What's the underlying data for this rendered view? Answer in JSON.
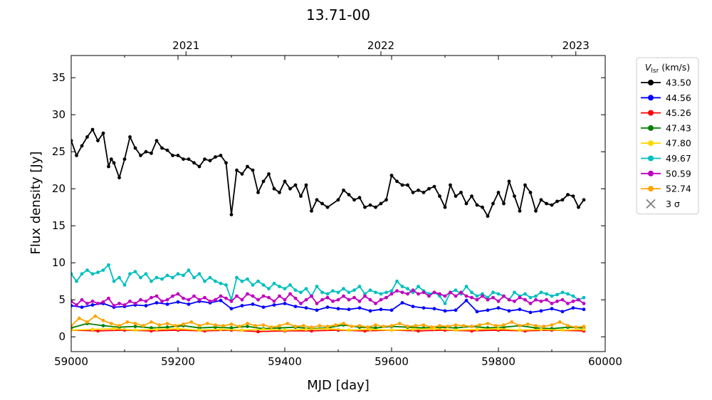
{
  "chart_data": {
    "type": "line",
    "title": "13.71-00",
    "xlabel": "MJD [day]",
    "ylabel": "Flux density [Jy]",
    "xlim": [
      59000,
      60000
    ],
    "ylim": [
      -2,
      38
    ],
    "xticks": [
      59000,
      59200,
      59400,
      59600,
      59800,
      60000
    ],
    "yticks": [
      0,
      5,
      10,
      15,
      20,
      25,
      30,
      35
    ],
    "top_axis": {
      "ticks": [
        {
          "label": "2021",
          "mjd": 59215
        },
        {
          "label": "2022",
          "mjd": 59580
        },
        {
          "label": "2023",
          "mjd": 59945
        }
      ]
    },
    "grid": false,
    "legend": {
      "title_main": "V",
      "title_sub": "lsr",
      "title_unit": " (km/s)",
      "placement": "outside-right-top",
      "sigma_label": "3 σ",
      "sigma_color": "#808080"
    },
    "series": [
      {
        "name": "43.50",
        "color": "#000000",
        "x": [
          59000,
          59010,
          59020,
          59030,
          59040,
          59050,
          59060,
          59070,
          59075,
          59080,
          59090,
          59100,
          59110,
          59120,
          59130,
          59140,
          59150,
          59160,
          59170,
          59180,
          59190,
          59200,
          59210,
          59220,
          59230,
          59240,
          59250,
          59260,
          59270,
          59280,
          59290,
          59300,
          59310,
          59320,
          59330,
          59340,
          59350,
          59360,
          59370,
          59380,
          59390,
          59400,
          59410,
          59420,
          59430,
          59440,
          59450,
          59460,
          59470,
          59480,
          59500,
          59510,
          59520,
          59530,
          59540,
          59550,
          59560,
          59570,
          59580,
          59590,
          59600,
          59610,
          59620,
          59630,
          59640,
          59650,
          59660,
          59670,
          59680,
          59690,
          59700,
          59710,
          59720,
          59730,
          59740,
          59750,
          59760,
          59770,
          59780,
          59790,
          59800,
          59810,
          59820,
          59830,
          59840,
          59850,
          59860,
          59870,
          59880,
          59890,
          59900,
          59910,
          59920,
          59930,
          59940,
          59950,
          59960
        ],
        "y": [
          26.5,
          24.5,
          25.8,
          27,
          28,
          26.5,
          27.5,
          23,
          24,
          23.5,
          21.5,
          24,
          27,
          25.5,
          24.5,
          25,
          24.8,
          26.5,
          25.5,
          25.2,
          24.5,
          24.5,
          24,
          24,
          23.5,
          23,
          24,
          23.8,
          24.3,
          24.5,
          23.5,
          16.5,
          22.5,
          22,
          23,
          22.5,
          19.5,
          21,
          22,
          20,
          19.5,
          21,
          20,
          20.5,
          19,
          20.5,
          17,
          18.5,
          18,
          17.5,
          18.5,
          19.8,
          19.2,
          18.5,
          18.8,
          17.5,
          17.8,
          17.5,
          18,
          18.5,
          21.8,
          21,
          20.5,
          20.5,
          19.5,
          19.8,
          19.5,
          20,
          20.3,
          19,
          17.5,
          20.5,
          19,
          19.5,
          18,
          19,
          17.8,
          17.5,
          16.3,
          18,
          19.5,
          18,
          21,
          19,
          17,
          20.5,
          19.5,
          17,
          18.5,
          18,
          17.8,
          18.3,
          18.5,
          19.2,
          19,
          17.5,
          18.5
        ]
      },
      {
        "name": "44.56",
        "color": "#0000ff",
        "x": [
          59000,
          59020,
          59040,
          59060,
          59080,
          59100,
          59120,
          59140,
          59160,
          59180,
          59200,
          59220,
          59240,
          59260,
          59280,
          59300,
          59320,
          59340,
          59360,
          59380,
          59400,
          59420,
          59440,
          59460,
          59480,
          59500,
          59520,
          59540,
          59560,
          59580,
          59600,
          59620,
          59640,
          59660,
          59680,
          59700,
          59720,
          59740,
          59760,
          59780,
          59800,
          59820,
          59840,
          59860,
          59880,
          59900,
          59920,
          59940,
          59960
        ],
        "y": [
          4.2,
          4.0,
          4.3,
          4.5,
          4.0,
          4.1,
          4.3,
          4.2,
          4.6,
          4.4,
          4.7,
          4.4,
          4.8,
          4.6,
          4.9,
          3.8,
          4.2,
          4.4,
          4.0,
          4.3,
          4.5,
          4.1,
          3.9,
          3.6,
          4.0,
          3.8,
          3.7,
          3.9,
          3.5,
          3.7,
          3.6,
          4.6,
          4.1,
          3.9,
          3.8,
          3.5,
          3.6,
          4.9,
          3.4,
          3.6,
          3.9,
          3.5,
          3.7,
          3.3,
          3.5,
          3.8,
          3.4,
          3.9,
          3.7
        ]
      },
      {
        "name": "45.26",
        "color": "#ff0000",
        "x": [
          59000,
          59050,
          59100,
          59150,
          59200,
          59250,
          59300,
          59350,
          59400,
          59450,
          59500,
          59550,
          59600,
          59650,
          59700,
          59750,
          59800,
          59850,
          59900,
          59960
        ],
        "y": [
          0.9,
          0.8,
          0.9,
          0.8,
          0.9,
          0.8,
          0.9,
          0.7,
          0.8,
          0.8,
          0.9,
          0.8,
          0.9,
          0.8,
          0.9,
          0.8,
          0.9,
          0.8,
          0.9,
          0.8
        ]
      },
      {
        "name": "47.43",
        "color": "#008000",
        "x": [
          59000,
          59030,
          59060,
          59090,
          59120,
          59150,
          59180,
          59210,
          59240,
          59270,
          59300,
          59330,
          59360,
          59390,
          59420,
          59450,
          59480,
          59510,
          59540,
          59570,
          59600,
          59630,
          59660,
          59690,
          59720,
          59750,
          59780,
          59810,
          59840,
          59870,
          59900,
          59930,
          59960
        ],
        "y": [
          1.2,
          1.8,
          1.5,
          1.3,
          1.4,
          1.2,
          1.3,
          1.5,
          1.2,
          1.3,
          1.2,
          1.4,
          1.1,
          1.2,
          1.3,
          1.1,
          1.2,
          1.6,
          1.3,
          1.2,
          1.4,
          1.3,
          1.2,
          1.3,
          1.2,
          1.4,
          1.2,
          1.3,
          1.5,
          1.2,
          1.1,
          1.3,
          1.2
        ]
      },
      {
        "name": "47.80",
        "color": "#ffd700",
        "x": [
          59000,
          59040,
          59080,
          59120,
          59160,
          59200,
          59240,
          59280,
          59320,
          59360,
          59400,
          59440,
          59480,
          59520,
          59560,
          59600,
          59640,
          59680,
          59720,
          59760,
          59800,
          59840,
          59880,
          59920,
          59960
        ],
        "y": [
          0.9,
          1.0,
          1.1,
          0.9,
          1.0,
          1.1,
          0.9,
          1.0,
          0.9,
          1.0,
          0.9,
          1.0,
          1.1,
          0.9,
          1.0,
          0.9,
          1.0,
          1.1,
          0.9,
          1.0,
          1.1,
          0.9,
          1.0,
          0.9,
          1.0
        ]
      },
      {
        "name": "49.67",
        "color": "#00bfbf",
        "x": [
          59000,
          59010,
          59020,
          59030,
          59040,
          59050,
          59060,
          59070,
          59080,
          59090,
          59100,
          59110,
          59120,
          59130,
          59140,
          59150,
          59160,
          59170,
          59180,
          59190,
          59200,
          59210,
          59220,
          59230,
          59240,
          59250,
          59260,
          59270,
          59280,
          59290,
          59300,
          59310,
          59320,
          59330,
          59340,
          59350,
          59360,
          59370,
          59380,
          59390,
          59400,
          59410,
          59420,
          59430,
          59440,
          59450,
          59460,
          59470,
          59480,
          59490,
          59500,
          59510,
          59520,
          59530,
          59540,
          59550,
          59560,
          59570,
          59580,
          59590,
          59600,
          59610,
          59620,
          59630,
          59640,
          59650,
          59660,
          59670,
          59680,
          59690,
          59700,
          59710,
          59720,
          59730,
          59740,
          59750,
          59760,
          59770,
          59780,
          59790,
          59800,
          59810,
          59820,
          59830,
          59840,
          59850,
          59860,
          59870,
          59880,
          59890,
          59900,
          59910,
          59920,
          59930,
          59940,
          59950,
          59960
        ],
        "y": [
          8.5,
          7.5,
          8.5,
          9.0,
          8.5,
          8.7,
          9.0,
          9.7,
          7.5,
          8.0,
          7.0,
          8.5,
          8.8,
          8.0,
          8.5,
          7.5,
          8.0,
          7.8,
          8.3,
          8.0,
          8.5,
          8.3,
          9.0,
          8.0,
          8.5,
          7.5,
          8.0,
          7.5,
          7.2,
          7.0,
          5.0,
          8.0,
          7.5,
          7.8,
          7.0,
          7.5,
          7.0,
          6.5,
          7.2,
          6.8,
          6.5,
          7.0,
          6.3,
          6.0,
          6.5,
          5.5,
          6.8,
          6.0,
          5.8,
          6.2,
          6.0,
          6.5,
          6.0,
          6.3,
          6.8,
          5.8,
          6.3,
          6.0,
          5.8,
          6.0,
          6.2,
          7.5,
          6.8,
          6.5,
          6.0,
          6.8,
          6.2,
          5.8,
          6.0,
          5.5,
          4.5,
          6.0,
          6.3,
          5.8,
          6.8,
          6.0,
          5.5,
          5.8,
          5.3,
          6.0,
          5.8,
          5.5,
          5.0,
          6.0,
          5.5,
          5.8,
          5.3,
          5.5,
          6.0,
          5.8,
          5.5,
          5.7,
          6.0,
          5.8,
          5.5,
          5.0,
          5.3
        ]
      },
      {
        "name": "50.59",
        "color": "#bf00bf",
        "x": [
          59000,
          59010,
          59020,
          59030,
          59040,
          59050,
          59060,
          59070,
          59080,
          59090,
          59100,
          59110,
          59120,
          59130,
          59140,
          59150,
          59160,
          59170,
          59180,
          59190,
          59200,
          59210,
          59220,
          59230,
          59240,
          59250,
          59260,
          59270,
          59280,
          59290,
          59300,
          59310,
          59320,
          59330,
          59340,
          59350,
          59360,
          59370,
          59380,
          59390,
          59400,
          59410,
          59420,
          59430,
          59440,
          59450,
          59460,
          59470,
          59480,
          59490,
          59500,
          59510,
          59520,
          59530,
          59540,
          59550,
          59560,
          59570,
          59580,
          59590,
          59600,
          59610,
          59620,
          59630,
          59640,
          59650,
          59660,
          59670,
          59680,
          59690,
          59700,
          59710,
          59720,
          59730,
          59740,
          59750,
          59760,
          59770,
          59780,
          59790,
          59800,
          59810,
          59820,
          59830,
          59840,
          59850,
          59860,
          59870,
          59880,
          59890,
          59900,
          59910,
          59920,
          59930,
          59940,
          59950,
          59960
        ],
        "y": [
          4.8,
          4.3,
          5.0,
          4.5,
          4.8,
          4.5,
          4.7,
          5.2,
          4.2,
          4.5,
          4.3,
          4.8,
          4.5,
          5.0,
          4.8,
          5.3,
          5.5,
          4.8,
          5.0,
          5.5,
          5.8,
          5.2,
          5.0,
          5.5,
          5.0,
          5.3,
          4.8,
          5.0,
          5.5,
          5.2,
          4.8,
          5.5,
          5.0,
          5.8,
          5.5,
          5.0,
          5.5,
          5.3,
          4.8,
          5.5,
          5.0,
          5.8,
          5.2,
          4.5,
          5.0,
          5.5,
          4.5,
          5.0,
          5.3,
          4.8,
          5.0,
          5.5,
          5.0,
          5.3,
          4.8,
          5.5,
          5.0,
          4.5,
          5.0,
          5.3,
          5.8,
          6.2,
          6.0,
          5.8,
          6.3,
          5.8,
          6.0,
          5.5,
          6.0,
          5.8,
          5.5,
          6.0,
          5.5,
          6.0,
          5.5,
          5.3,
          5.0,
          5.5,
          5.0,
          5.3,
          4.8,
          5.5,
          5.0,
          4.8,
          5.3,
          5.0,
          4.5,
          5.0,
          4.8,
          5.0,
          4.5,
          4.8,
          5.0,
          4.5,
          4.8,
          5.0,
          4.5
        ]
      },
      {
        "name": "52.74",
        "color": "#ffa500",
        "x": [
          59000,
          59015,
          59030,
          59045,
          59060,
          59075,
          59090,
          59105,
          59120,
          59135,
          59150,
          59165,
          59180,
          59195,
          59210,
          59225,
          59240,
          59255,
          59270,
          59285,
          59300,
          59315,
          59330,
          59345,
          59360,
          59375,
          59390,
          59405,
          59420,
          59435,
          59450,
          59465,
          59480,
          59495,
          59510,
          59525,
          59540,
          59555,
          59570,
          59585,
          59600,
          59615,
          59630,
          59645,
          59660,
          59675,
          59690,
          59705,
          59720,
          59735,
          59750,
          59765,
          59780,
          59795,
          59810,
          59825,
          59840,
          59855,
          59870,
          59885,
          59900,
          59915,
          59930,
          59945,
          59960
        ],
        "y": [
          1.5,
          2.5,
          2.0,
          2.8,
          2.2,
          1.8,
          1.5,
          2.0,
          1.8,
          1.5,
          2.0,
          1.6,
          1.8,
          1.5,
          1.7,
          2.0,
          1.5,
          1.8,
          1.6,
          1.5,
          1.7,
          1.4,
          1.8,
          1.5,
          1.6,
          1.3,
          1.5,
          1.8,
          1.4,
          1.5,
          1.3,
          1.5,
          1.4,
          1.6,
          1.8,
          1.4,
          1.5,
          1.3,
          1.6,
          1.4,
          1.5,
          1.8,
          1.4,
          1.5,
          1.6,
          1.3,
          1.5,
          1.4,
          1.6,
          1.5,
          1.4,
          1.6,
          1.8,
          1.5,
          1.6,
          2.0,
          1.5,
          1.7,
          1.5,
          1.4,
          1.6,
          2.0,
          1.5,
          1.3,
          1.4
        ]
      }
    ]
  }
}
